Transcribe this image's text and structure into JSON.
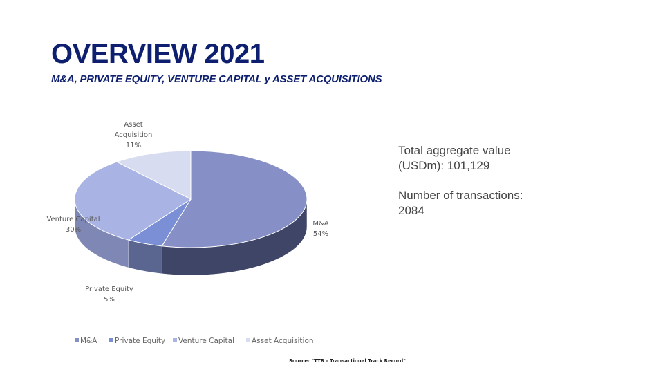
{
  "title": "OVERVIEW 2021",
  "subtitle": "M&A, PRIVATE EQUITY, VENTURE CAPITAL y ASSET ACQUISITIONS",
  "stats": {
    "total_label": "Total aggregate value",
    "total_value": "(USDm): 101,129",
    "count_label": "Number of transactions:",
    "count_value": "2084"
  },
  "source": "Source: \"TTR - Transactional Track Record\"",
  "chart_data": {
    "type": "pie",
    "style": "3d",
    "categories": [
      "M&A",
      "Private Equity",
      "Venture Capital",
      "Asset Acquisition"
    ],
    "values": [
      54,
      5,
      30,
      11
    ],
    "value_labels": [
      "54%",
      "5%",
      "30%",
      "11%"
    ],
    "colors": [
      "#8790c6",
      "#7b8fd6",
      "#aab4e4",
      "#d8dcf0"
    ],
    "side_colors": [
      "#3f4566",
      "#5a6590",
      "#7f88b4",
      "#a0a6c8"
    ],
    "legend": {
      "position": "bottom",
      "labels": [
        "M&A",
        "Private Equity",
        "Venture Capital",
        "Asset Acquisition"
      ]
    }
  }
}
